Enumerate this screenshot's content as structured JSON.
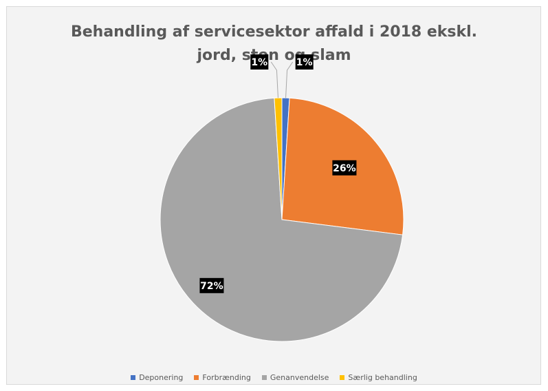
{
  "chart_data": {
    "type": "pie",
    "title": "Behandling af servicesektor affald i 2018 ekskl. jord, sten og slam",
    "title_lines": [
      "Behandling af servicesektor affald i 2018 ekskl.",
      "jord, sten og slam"
    ],
    "categories": [
      "Deponering",
      "Forbrænding",
      "Genanvendelse",
      "Særlig behandling"
    ],
    "values": [
      1,
      26,
      72,
      1
    ],
    "labels": [
      "1%",
      "26%",
      "72%",
      "1%"
    ],
    "colors": [
      "#4472C4",
      "#ED7D31",
      "#A5A5A5",
      "#FFC000"
    ],
    "legend_position": "bottom"
  }
}
